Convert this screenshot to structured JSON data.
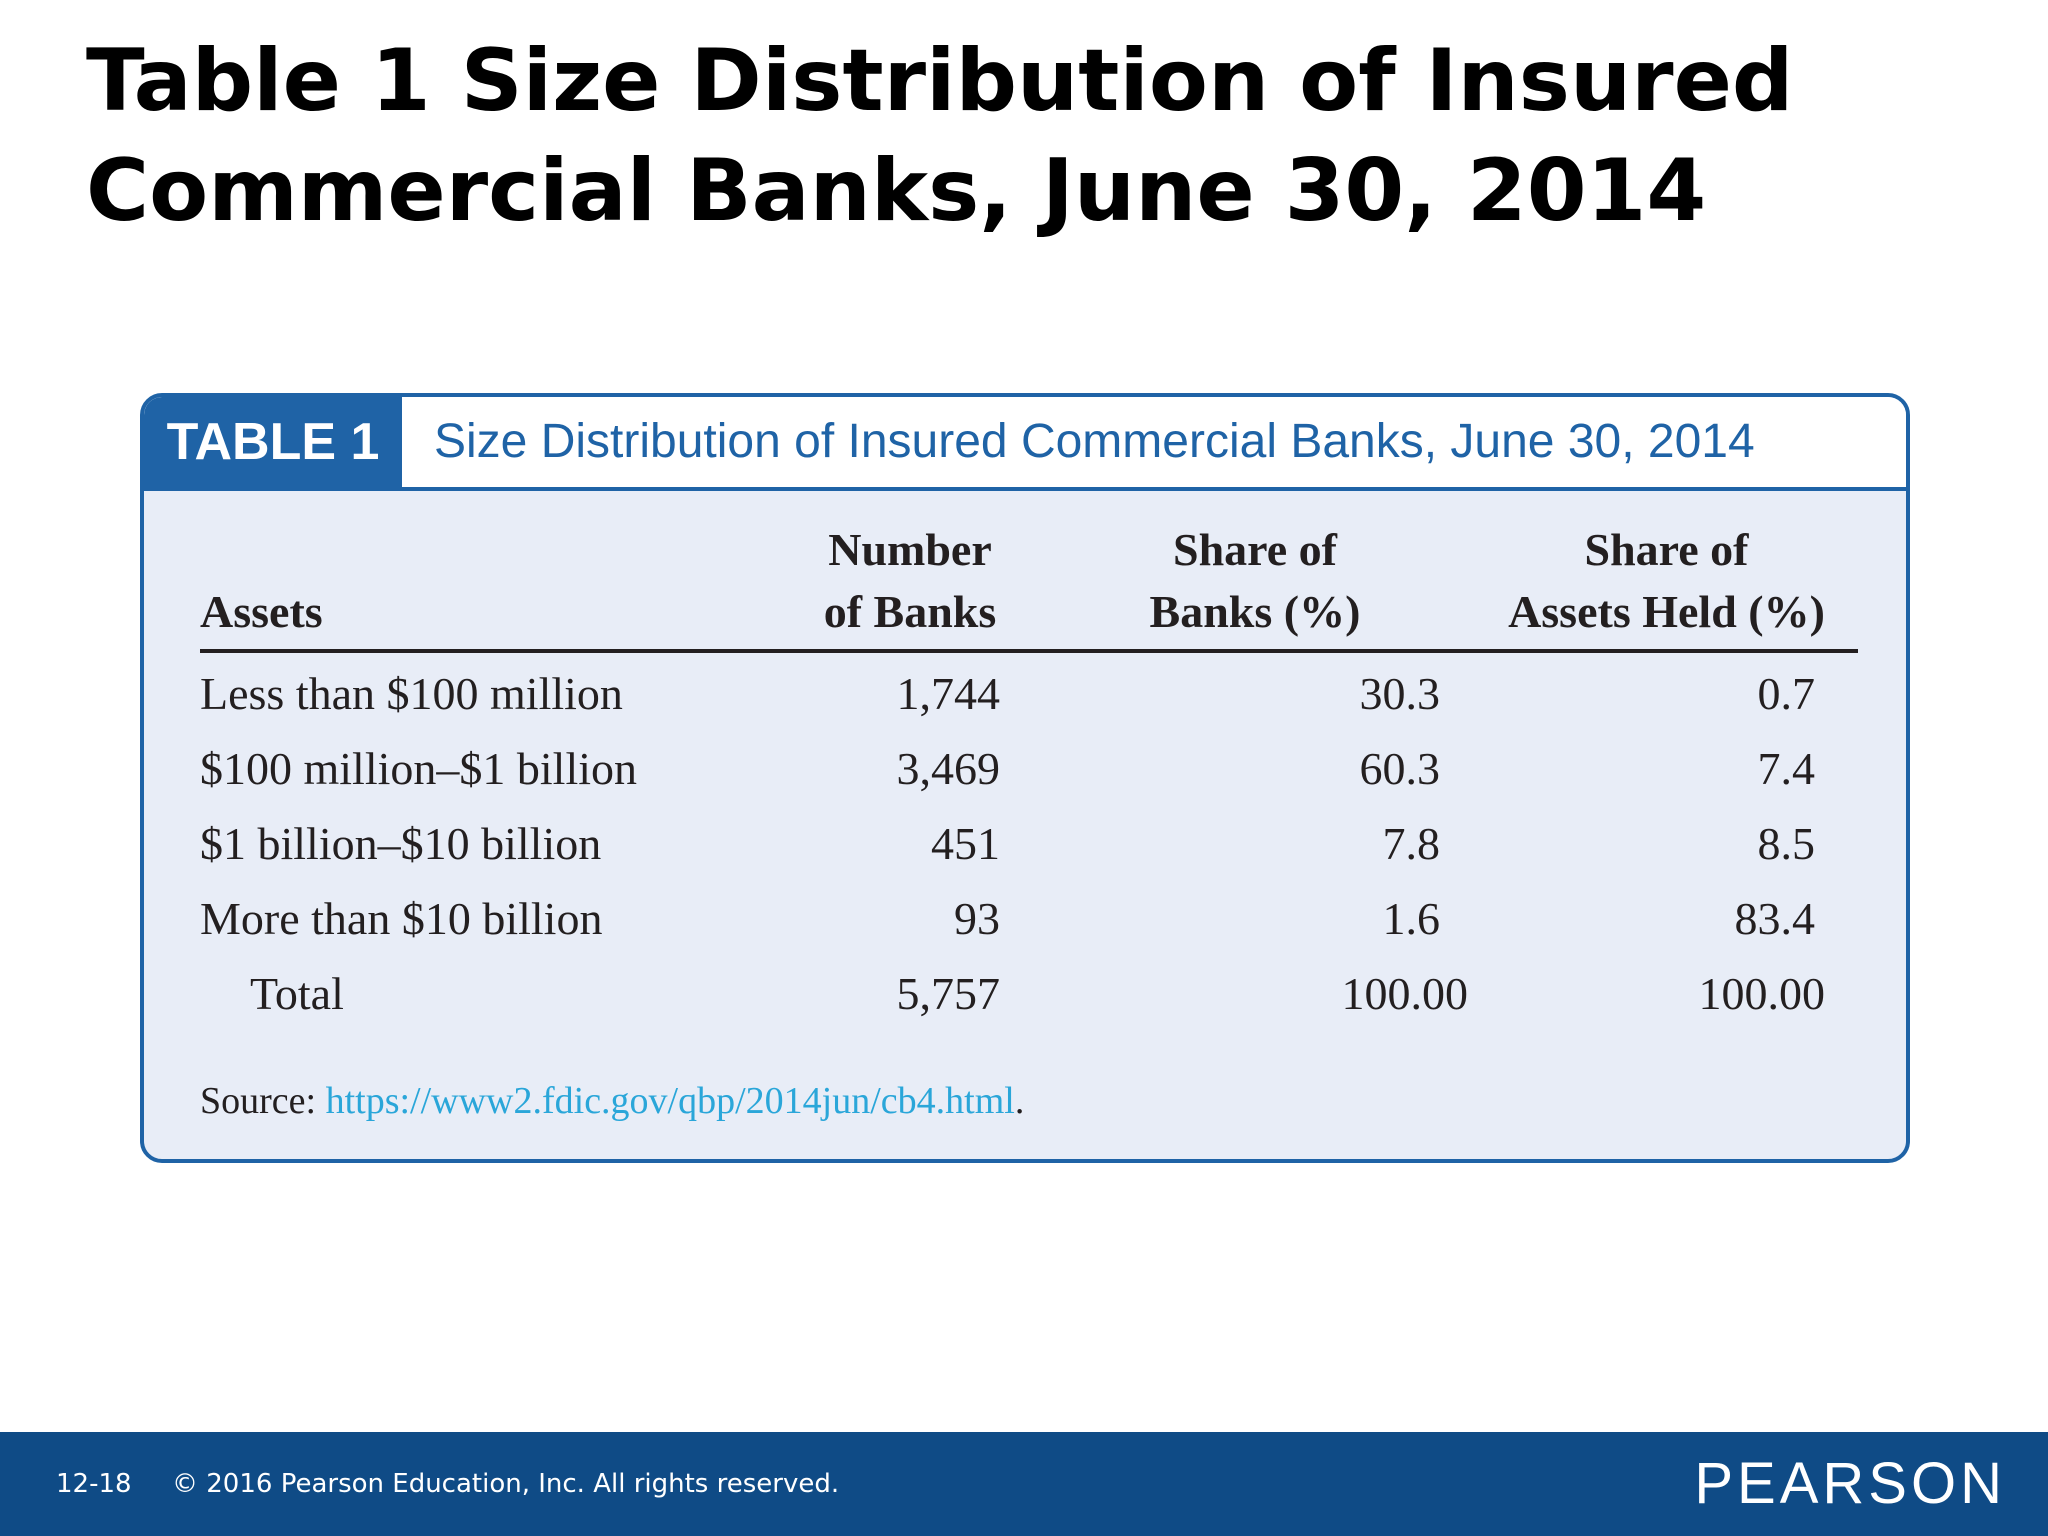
{
  "slide": {
    "title": "Table 1 Size Distribution of Insured Commercial Banks, June 30, 2014"
  },
  "table": {
    "tag": "TABLE 1",
    "caption": "Size Distribution of Insured Commercial Banks, June 30, 2014",
    "headers": {
      "assets": "Assets",
      "num_line1": "Number",
      "num_line2": "of Banks",
      "share_line1": "Share of",
      "share_line2": "Banks (%)",
      "held_line1": "Share of",
      "held_line2": "Assets Held (%)"
    },
    "rows": [
      {
        "assets": "Less than $100 million",
        "number": "1,744",
        "share": "30.3",
        "held": "0.7"
      },
      {
        "assets": "$100 million–$1 billion",
        "number": "3,469",
        "share": "60.3",
        "held": "7.4"
      },
      {
        "assets": "$1 billion–$10 billion",
        "number": "451",
        "share": "7.8",
        "held": "8.5"
      },
      {
        "assets": "More than $10 billion",
        "number": "93",
        "share": "1.6",
        "held": "83.4"
      },
      {
        "assets": "Total",
        "number": "5,757",
        "share": "100.00",
        "held": "100.00"
      }
    ],
    "source_label": "Source: ",
    "source_link": "https://www2.fdic.gov/qbp/2014jun/cb4.html",
    "source_end": "."
  },
  "footer": {
    "slide_number": "12-18",
    "copyright": "© 2016 Pearson Education, Inc. All rights reserved.",
    "brand": "PEARSON"
  },
  "colors": {
    "accent_blue": "#1f63a6",
    "footer_blue": "#0f4b86",
    "table_bg": "#e8edf7",
    "link": "#2aa6d9"
  }
}
